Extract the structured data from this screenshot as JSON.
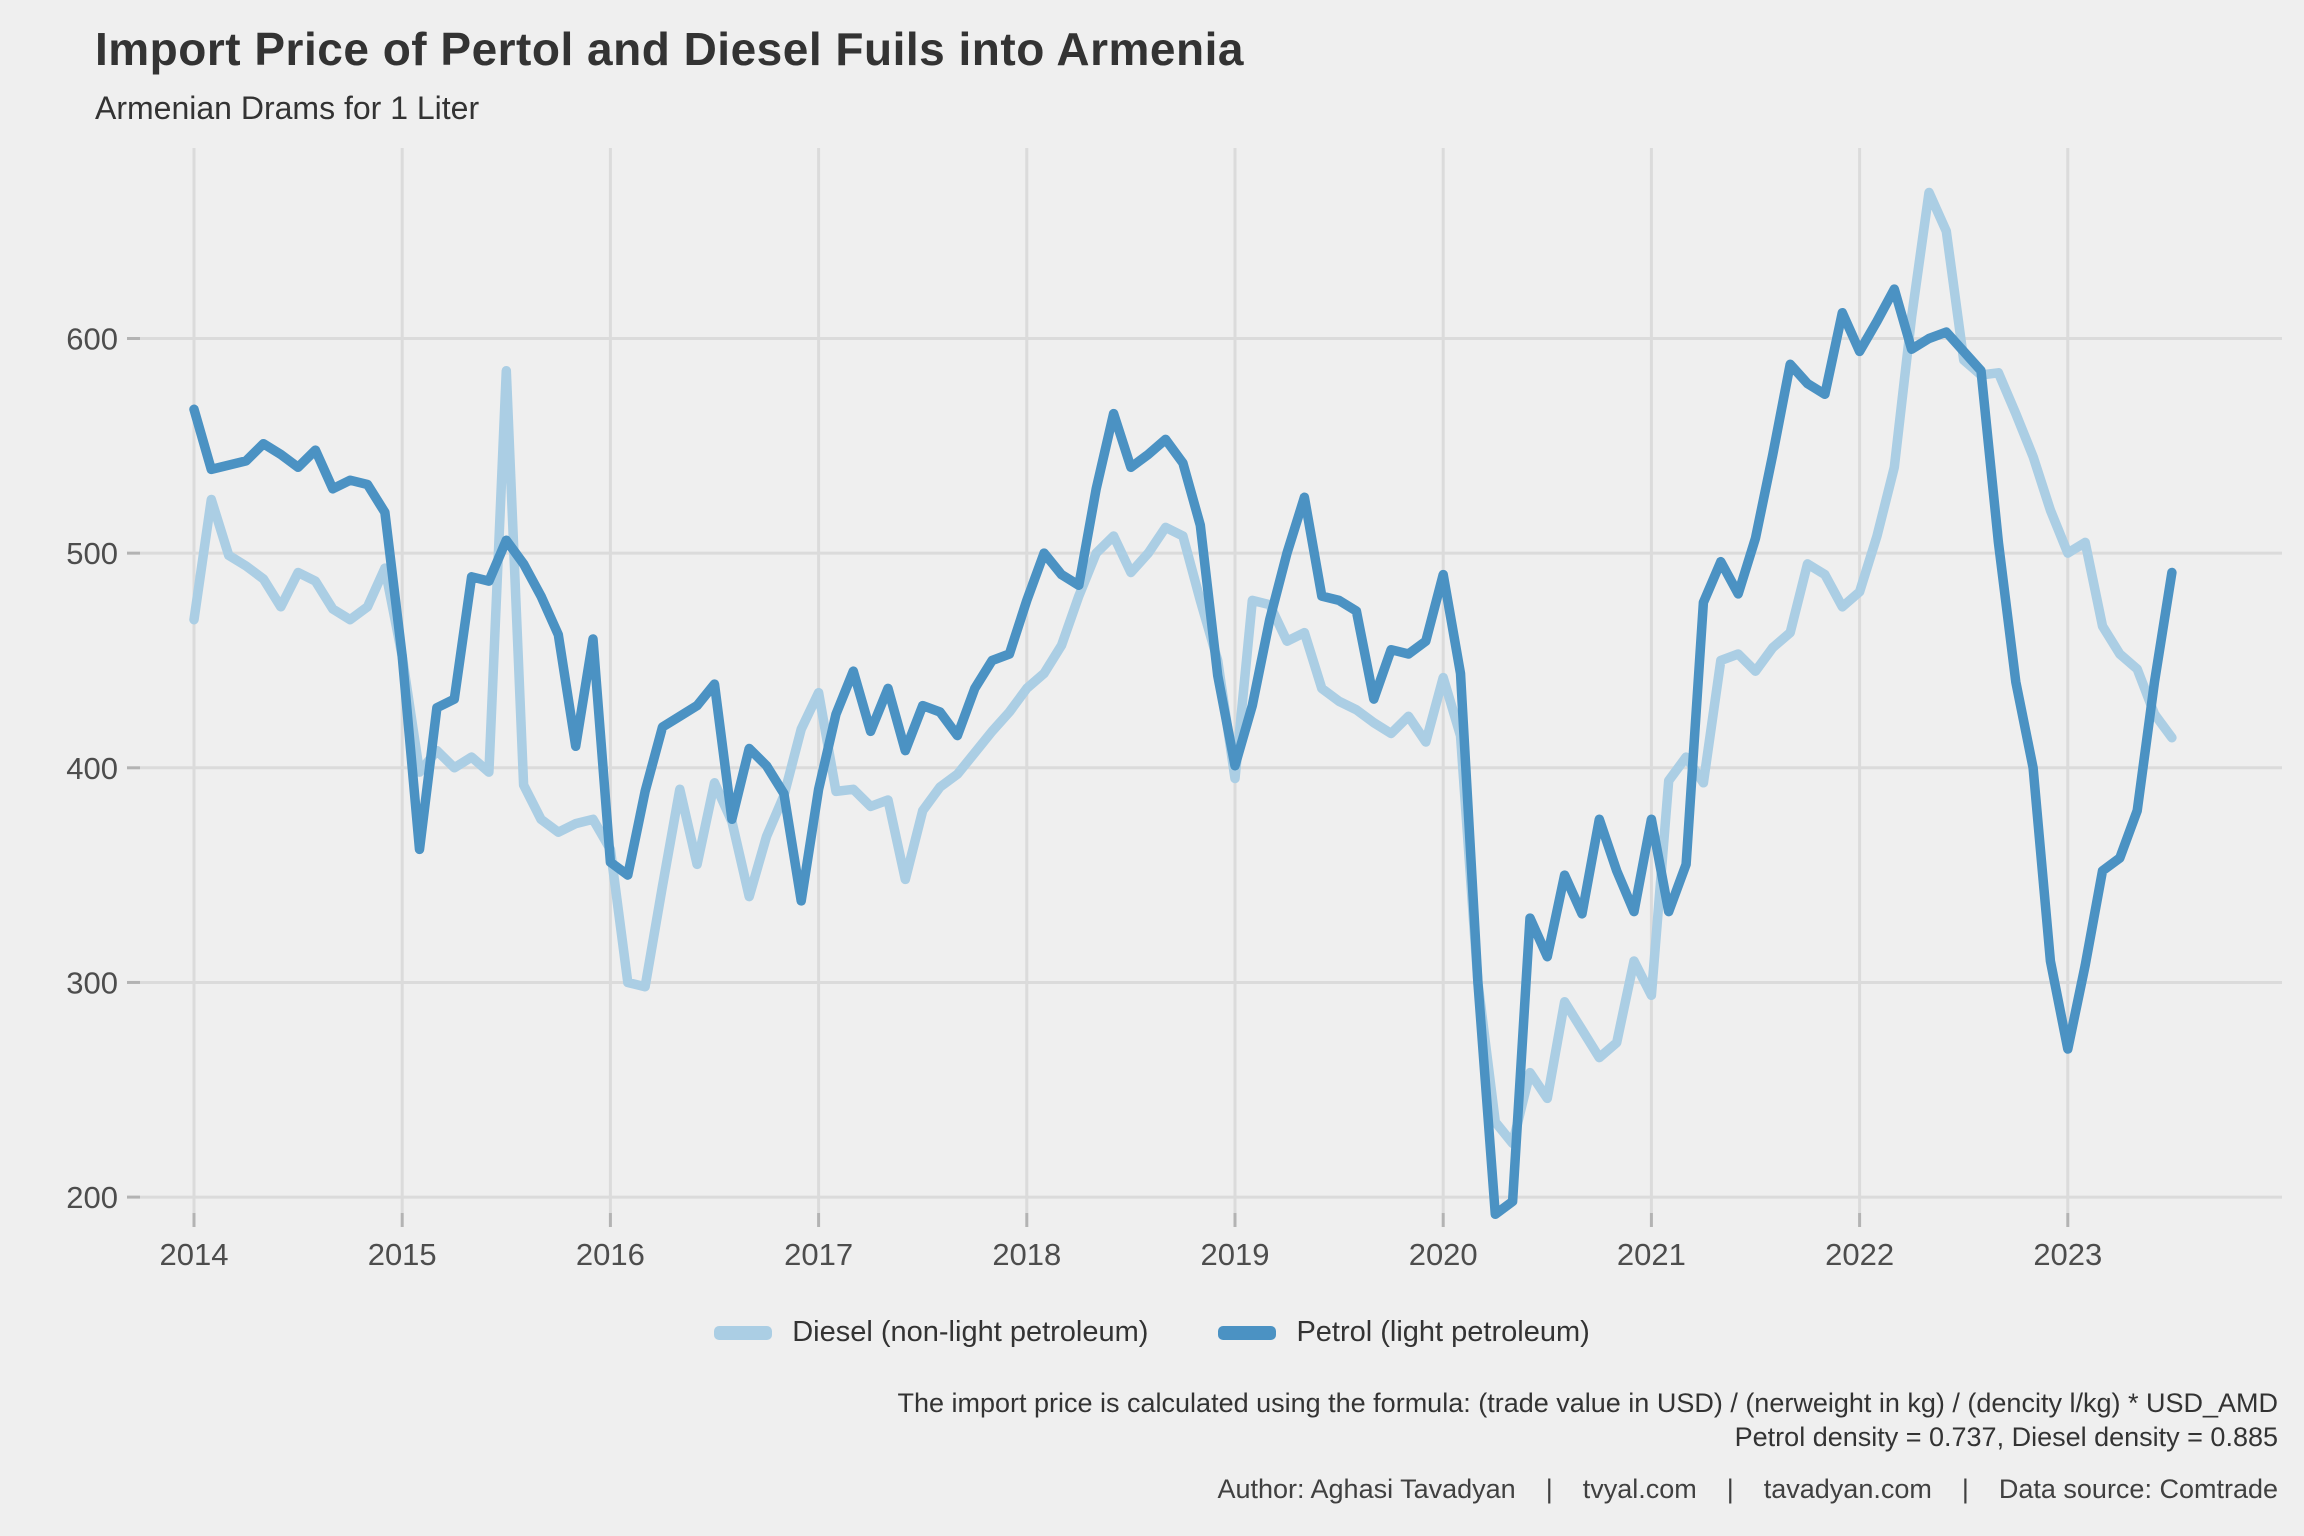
{
  "header": {
    "title": "Import Price of Pertol and Diesel Fuils into Armenia",
    "subtitle": "Armenian Drams for 1 Liter"
  },
  "legend": {
    "diesel_label": "Diesel (non-light petroleum)",
    "petrol_label": "Petrol (light petroleum)"
  },
  "captions": {
    "formula_line1": "The import price is calculated using the formula: (trade value in USD) / (nerweight in kg) / (dencity l/kg) * USD_AMD",
    "formula_line2": "Petrol density = 0.737, Diesel density = 0.885",
    "author_line": "Author: Aghasi Tavadyan    |    tvyal.com    |    tavadyan.com    |    Data source: Comtrade"
  },
  "colors": {
    "background": "#EFEFEF",
    "gridline": "#DBDBDB",
    "tick_mark": "#B3B3B3",
    "axis_text": "#4D4D4D",
    "title_text": "#333333",
    "diesel": "#ABCEE4",
    "petrol": "#4B92C3"
  },
  "chart_data": {
    "type": "line",
    "title": "Import Price of Pertol and Diesel Fuils into Armenia",
    "subtitle": "Armenian Drams for 1 Liter",
    "xlabel": "",
    "ylabel": "",
    "grid": true,
    "legend_position": "bottom",
    "x_start": "2014-01",
    "x_end": "2023-07",
    "frequency": "monthly",
    "x_tick_labels": [
      "2014",
      "2015",
      "2016",
      "2017",
      "2018",
      "2019",
      "2020",
      "2021",
      "2022",
      "2023"
    ],
    "y_ticks": [
      200,
      300,
      400,
      500,
      600
    ],
    "ylim": [
      185,
      680
    ],
    "series": [
      {
        "name": "Diesel (non-light petroleum)",
        "color": "#ABCEE4",
        "values": [
          469,
          525,
          499,
          494,
          488,
          475,
          491,
          487,
          474,
          469,
          475,
          493,
          452,
          398,
          408,
          400,
          405,
          398,
          585,
          392,
          376,
          370,
          374,
          376,
          362,
          300,
          298,
          345,
          390,
          355,
          393,
          375,
          340,
          368,
          387,
          418,
          435,
          389,
          390,
          382,
          385,
          348,
          380,
          391,
          397,
          407,
          417,
          426,
          437,
          444,
          457,
          480,
          500,
          508,
          491,
          500,
          512,
          508,
          478,
          450,
          395,
          478,
          476,
          459,
          463,
          437,
          431,
          427,
          421,
          416,
          424,
          412,
          442,
          415,
          300,
          235,
          225,
          258,
          246,
          291,
          278,
          265,
          272,
          310,
          294,
          394,
          405,
          393,
          450,
          453,
          445,
          456,
          463,
          495,
          490,
          475,
          482,
          508,
          540,
          610,
          668,
          650,
          590,
          583,
          584,
          565,
          545,
          520,
          500,
          505,
          466,
          453,
          446,
          425,
          414
        ]
      },
      {
        "name": "Petrol (light petroleum)",
        "color": "#4B92C3",
        "values": [
          567,
          539,
          541,
          543,
          551,
          546,
          540,
          548,
          530,
          534,
          532,
          519,
          452,
          362,
          428,
          432,
          489,
          487,
          506,
          495,
          480,
          462,
          410,
          460,
          356,
          350,
          389,
          419,
          424,
          429,
          439,
          376,
          409,
          401,
          388,
          338,
          390,
          425,
          445,
          417,
          437,
          408,
          429,
          426,
          415,
          437,
          450,
          453,
          478,
          500,
          490,
          485,
          530,
          565,
          540,
          546,
          553,
          542,
          513,
          443,
          401,
          429,
          469,
          500,
          526,
          480,
          478,
          473,
          432,
          455,
          453,
          459,
          490,
          444,
          300,
          192,
          198,
          330,
          312,
          350,
          332,
          376,
          352,
          333,
          376,
          333,
          355,
          477,
          496,
          481,
          507,
          546,
          588,
          579,
          574,
          612,
          594,
          608,
          623,
          595,
          600,
          603,
          594,
          585,
          505,
          440,
          400,
          310,
          269,
          308,
          352,
          358,
          380,
          440,
          491
        ]
      }
    ]
  }
}
